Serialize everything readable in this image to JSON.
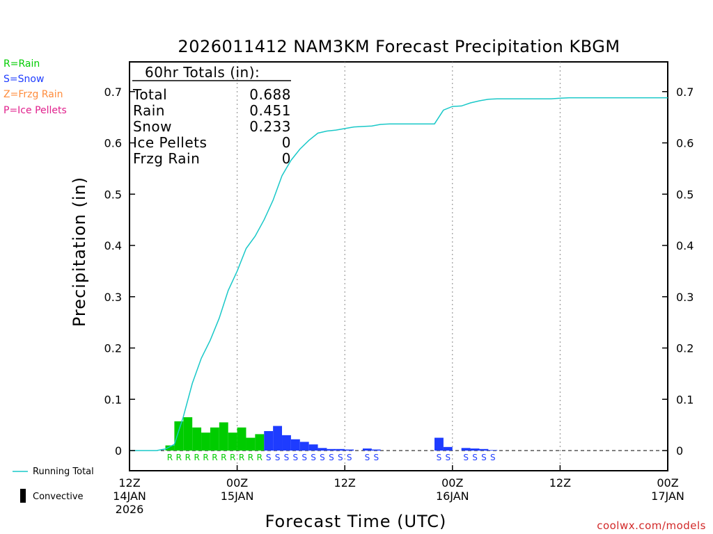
{
  "colors": {
    "rain": "#00cc00",
    "snow": "#1e3cff",
    "frzg": "#ff8c3c",
    "ice": "#e0208c",
    "running_total": "#19c8c8",
    "convective": "#000000",
    "credit": "#d22828"
  },
  "legend_left": {
    "rain": "R=Rain",
    "snow": "S=Snow",
    "frzg": "Z=Frzg Rain",
    "ice": "P=Ice Pellets"
  },
  "legend_bottom": {
    "running_total": "Running Total",
    "convective": "Convective"
  },
  "totals_box": {
    "header": "60hr Totals (in):",
    "rows": [
      {
        "label": "Total",
        "value": "0.688"
      },
      {
        "label": "Rain",
        "value": "0.451"
      },
      {
        "label": "Snow",
        "value": "0.233"
      },
      {
        "label": "Ice Pellets",
        "value": "0"
      },
      {
        "label": "Frzg Rain",
        "value": "0"
      }
    ]
  },
  "credit": "coolwx.com/models",
  "chart_data": {
    "type": "bar",
    "title": "2026011412 NAM3KM Forecast Precipitation KBGM",
    "xlabel": "Forecast Time (UTC)",
    "ylabel": "Precipitation (in)",
    "ylim": [
      0,
      0.76
    ],
    "xlim_hours": [
      0,
      60
    ],
    "y_ticks": [
      "0",
      "0.1",
      "0.2",
      "0.3",
      "0.4",
      "0.5",
      "0.6",
      "0.7"
    ],
    "x_ticks": [
      {
        "hour": 0,
        "lines": [
          "12Z",
          "14JAN",
          "2026"
        ]
      },
      {
        "hour": 12,
        "lines": [
          "00Z",
          "15JAN"
        ]
      },
      {
        "hour": 24,
        "lines": [
          "12Z"
        ]
      },
      {
        "hour": 36,
        "lines": [
          "00Z",
          "16JAN"
        ]
      },
      {
        "hour": 48,
        "lines": [
          "12Z"
        ]
      },
      {
        "hour": 60,
        "lines": [
          "00Z",
          "17JAN"
        ]
      }
    ],
    "bars": [
      {
        "hour": 5,
        "value": 0.01,
        "type": "R"
      },
      {
        "hour": 6,
        "value": 0.057,
        "type": "R"
      },
      {
        "hour": 7,
        "value": 0.065,
        "type": "R"
      },
      {
        "hour": 8,
        "value": 0.045,
        "type": "R"
      },
      {
        "hour": 9,
        "value": 0.035,
        "type": "R"
      },
      {
        "hour": 10,
        "value": 0.045,
        "type": "R"
      },
      {
        "hour": 11,
        "value": 0.055,
        "type": "R"
      },
      {
        "hour": 12,
        "value": 0.035,
        "type": "R"
      },
      {
        "hour": 13,
        "value": 0.045,
        "type": "R"
      },
      {
        "hour": 14,
        "value": 0.025,
        "type": "R"
      },
      {
        "hour": 15,
        "value": 0.032,
        "type": "R"
      },
      {
        "hour": 16,
        "value": 0.038,
        "type": "S"
      },
      {
        "hour": 17,
        "value": 0.048,
        "type": "S"
      },
      {
        "hour": 18,
        "value": 0.03,
        "type": "S"
      },
      {
        "hour": 19,
        "value": 0.022,
        "type": "S"
      },
      {
        "hour": 20,
        "value": 0.017,
        "type": "S"
      },
      {
        "hour": 21,
        "value": 0.012,
        "type": "S"
      },
      {
        "hour": 22,
        "value": 0.005,
        "type": "S"
      },
      {
        "hour": 23,
        "value": 0.003,
        "type": "S"
      },
      {
        "hour": 24,
        "value": 0.003,
        "type": "S"
      },
      {
        "hour": 25,
        "value": 0.002,
        "type": "S"
      },
      {
        "hour": 27,
        "value": 0.004,
        "type": "S"
      },
      {
        "hour": 28,
        "value": 0.002,
        "type": "S"
      },
      {
        "hour": 35,
        "value": 0.025,
        "type": "S"
      },
      {
        "hour": 36,
        "value": 0.007,
        "type": "S"
      },
      {
        "hour": 38,
        "value": 0.005,
        "type": "S"
      },
      {
        "hour": 39,
        "value": 0.004,
        "type": "S"
      },
      {
        "hour": 40,
        "value": 0.003,
        "type": "S"
      },
      {
        "hour": 41,
        "value": 0.001,
        "type": "S"
      }
    ],
    "running_total": {
      "hours": [
        0,
        1,
        2,
        3,
        4,
        5,
        6,
        7,
        8,
        9,
        10,
        11,
        12,
        13,
        14,
        15,
        16,
        17,
        18,
        19,
        20,
        21,
        22,
        23,
        24,
        25,
        26,
        27,
        28,
        29,
        30,
        31,
        32,
        33,
        34,
        35,
        36,
        37,
        38,
        39,
        40,
        41,
        42,
        43,
        44,
        45,
        46,
        47,
        48,
        49,
        50,
        51,
        52,
        53,
        54,
        55,
        56,
        57,
        58,
        59,
        60
      ],
      "values": [
        0,
        0,
        0,
        0,
        0.003,
        0.012,
        0.066,
        0.131,
        0.18,
        0.215,
        0.258,
        0.312,
        0.35,
        0.394,
        0.418,
        0.45,
        0.488,
        0.536,
        0.566,
        0.588,
        0.605,
        0.619,
        0.623,
        0.625,
        0.628,
        0.631,
        0.632,
        0.633,
        0.636,
        0.637,
        0.637,
        0.637,
        0.637,
        0.637,
        0.637,
        0.664,
        0.671,
        0.672,
        0.678,
        0.682,
        0.685,
        0.686,
        0.686,
        0.686,
        0.686,
        0.686,
        0.686,
        0.686,
        0.687,
        0.688,
        0.688,
        0.688,
        0.688,
        0.688,
        0.688,
        0.688,
        0.688,
        0.688,
        0.688,
        0.688,
        0.688
      ]
    }
  }
}
